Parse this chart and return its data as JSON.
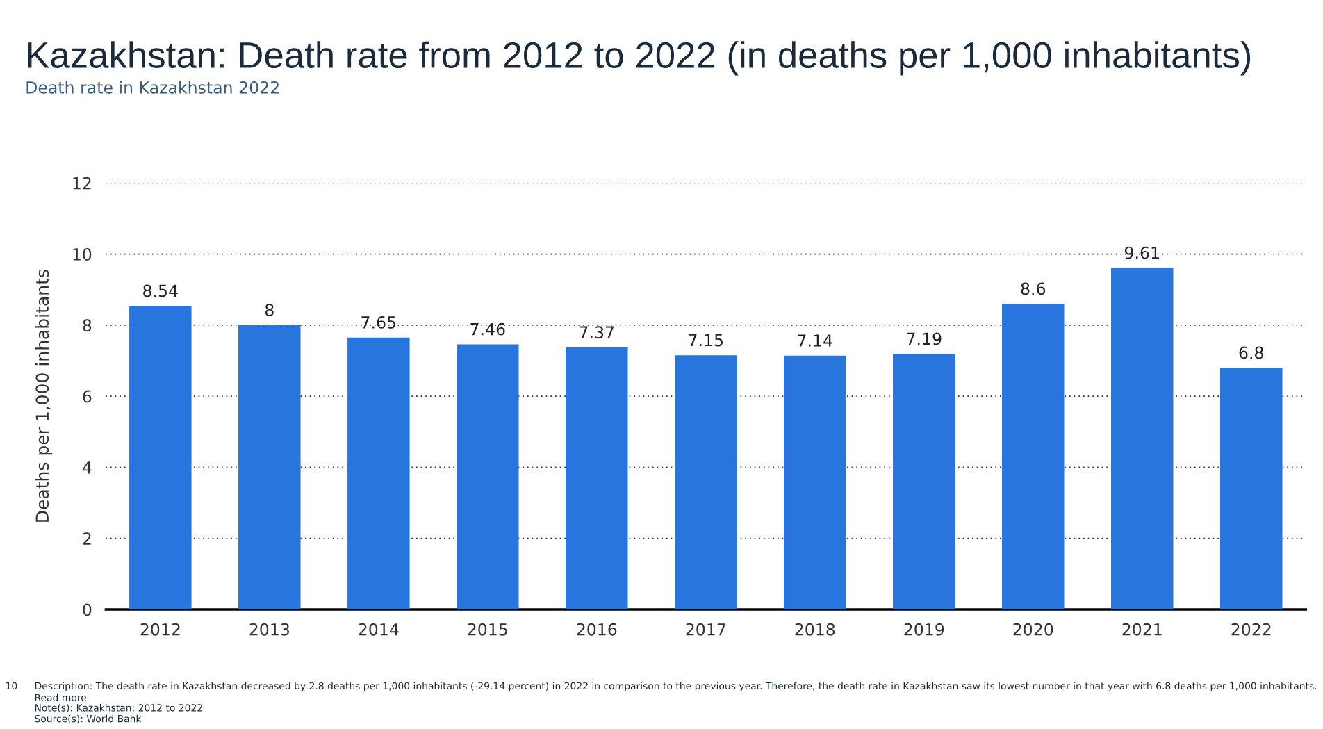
{
  "chart_data": {
    "type": "bar",
    "title": "Kazakhstan: Death rate from 2012 to 2022 (in deaths per 1,000 inhabitants)",
    "subtitle": "Death rate in Kazakhstan 2022",
    "ylabel": "Deaths per 1,000 inhabitants",
    "categories": [
      "2012",
      "2013",
      "2014",
      "2015",
      "2016",
      "2017",
      "2018",
      "2019",
      "2020",
      "2021",
      "2022"
    ],
    "values": [
      8.54,
      8,
      7.65,
      7.46,
      7.37,
      7.15,
      7.14,
      7.19,
      8.6,
      9.61,
      6.8
    ],
    "color": "#2876dd",
    "ylim": [
      0,
      12
    ],
    "yticks": [
      0,
      2,
      4,
      6,
      8,
      10,
      12
    ],
    "grid": "y",
    "data_labels": true,
    "annotations": [
      "10",
      "Description: The death rate in Kazakhstan decreased by 2.8 deaths per 1,000 inhabitants (-29.14 percent) in 2022 in comparison to the previous year. Therefore, the death rate in Kazakhstan saw its lowest number in that year with 6.8 deaths per 1,000 inhabitants.",
      "Read more",
      "Note(s): Kazakhstan; 2012 to 2022",
      "Source(s): World Bank"
    ]
  }
}
